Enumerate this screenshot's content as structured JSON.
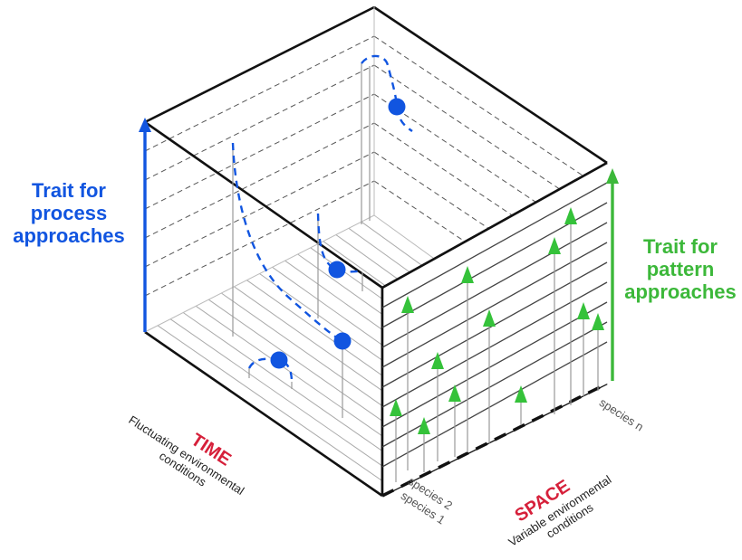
{
  "diagram": {
    "y_axis_left": {
      "lines": [
        "Trait for",
        "process",
        "approaches"
      ],
      "color": "#1155e0"
    },
    "y_axis_right": {
      "lines": [
        "Trait for",
        "pattern",
        "approaches"
      ],
      "color": "#3cb83a"
    },
    "time_axis": {
      "title": "TIME",
      "subtitle_lines": [
        "Fluctuating environmental",
        "conditions"
      ],
      "title_color": "#d6203a"
    },
    "space_axis": {
      "title": "SPACE",
      "subtitle_lines": [
        "Variable environmental",
        "conditions"
      ],
      "title_color": "#d6203a"
    },
    "species_labels": {
      "first": "species 1",
      "second": "species 2",
      "last": "species n"
    },
    "marker_colors": {
      "process_circle": "#1155e0",
      "pattern_triangle": "#35c23a"
    }
  }
}
